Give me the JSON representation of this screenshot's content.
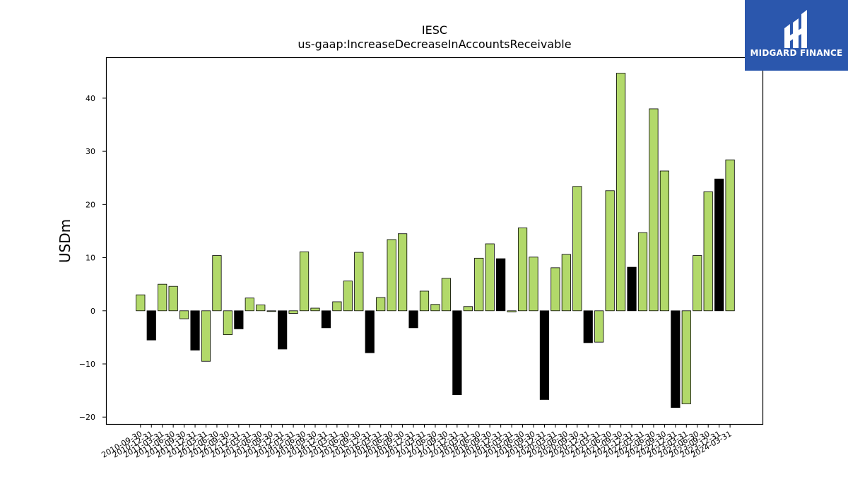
{
  "logo": {
    "text": "MIDGARD FINANCE",
    "icon": "midgard-finance-logo-icon"
  },
  "chart_data": {
    "type": "bar",
    "title": "IESC",
    "subtitle": "us-gaap:IncreaseDecreaseInAccountsReceivable",
    "ylabel": "USDm",
    "xlabel": "",
    "ylim": [
      -21.3,
      47.7
    ],
    "yticks": [
      -20,
      -10,
      0,
      10,
      20,
      30,
      40
    ],
    "ytick_labels": [
      "−20",
      "−10",
      "0",
      "10",
      "20",
      "30",
      "40"
    ],
    "grid": false,
    "legend": "none",
    "colors": {
      "bar_default": "#b2d96a",
      "bar_highlight": "#000000",
      "edge": "#000000"
    },
    "categories": [
      "2010-09-30",
      "2010-12-31",
      "2011-03-31",
      "2011-06-30",
      "2011-09-30",
      "2011-12-31",
      "2012-03-31",
      "2012-06-30",
      "2012-09-30",
      "2012-12-31",
      "2013-03-31",
      "2013-06-30",
      "2013-09-30",
      "2013-12-31",
      "2014-03-31",
      "2014-06-30",
      "2014-09-30",
      "2014-12-31",
      "2015-03-31",
      "2015-06-30",
      "2015-09-30",
      "2015-12-31",
      "2016-03-31",
      "2016-06-30",
      "2016-09-30",
      "2016-12-31",
      "2017-03-31",
      "2017-06-30",
      "2017-09-30",
      "2017-12-31",
      "2018-03-31",
      "2018-06-30",
      "2018-09-30",
      "2018-12-31",
      "2019-03-31",
      "2019-06-30",
      "2019-09-30",
      "2019-12-31",
      "2020-03-31",
      "2020-06-30",
      "2020-09-30",
      "2020-12-31",
      "2021-03-31",
      "2021-06-30",
      "2021-09-30",
      "2021-12-31",
      "2022-03-31",
      "2022-06-30",
      "2022-09-30",
      "2022-12-31",
      "2023-03-31",
      "2023-06-30",
      "2023-09-30",
      "2023-12-31",
      "2024-03-31"
    ],
    "x_tick_labels": [
      "2010-09-30",
      "2010-12-31",
      "2011-03-31",
      "2011-06-30",
      "2011-09-30",
      "2011-12-31",
      "2012-03-31",
      "2012-06-30",
      "2012-09-30",
      "2012-12-31",
      "2013-03-31",
      "2013-06-30",
      "2013-09-30",
      "2013-12-31",
      "2014-03-31",
      "2014-06-30",
      "2014-09-30",
      "2014-12-31",
      "2015-03-31",
      "2015-06-30",
      "2015-09-30",
      "2015-12-31",
      "2016-03-31",
      "2016-06-30",
      "2016-09-30",
      "2016-12-31",
      "2017-03-31",
      "2017-06-30",
      "2017-09-30",
      "2017-12-31",
      "2018-03-31",
      "2018-06-30",
      "2018-09-30",
      "2018-12-31",
      "2019-03-31",
      "2019-06-30",
      "2019-09-30",
      "2019-12-31",
      "2020-03-31",
      "2020-06-30",
      "2020-09-30",
      "2020-12-31",
      "2021-03-31",
      "2021-06-30",
      "2021-09-30",
      "2021-12-31",
      "2022-03-31",
      "2022-06-30",
      "2022-09-30",
      "2022-12-31",
      "2023-03-31",
      "2023-06-30",
      "2023-09-30",
      "2023-12-31",
      "2024-03-31"
    ],
    "values": [
      3.0,
      -5.5,
      5.0,
      4.6,
      -1.5,
      -7.4,
      -9.5,
      10.4,
      -4.5,
      -3.4,
      2.4,
      1.1,
      -0.1,
      -7.2,
      -0.5,
      11.1,
      0.5,
      -3.2,
      1.7,
      5.6,
      11.0,
      -7.9,
      2.5,
      13.4,
      14.5,
      -3.2,
      3.7,
      1.2,
      6.1,
      -15.8,
      0.8,
      9.9,
      12.6,
      9.8,
      -0.2,
      15.6,
      10.1,
      -16.7,
      8.1,
      10.6,
      23.4,
      -6.0,
      -5.9,
      22.6,
      44.7,
      8.2,
      14.7,
      38.0,
      26.3,
      -18.2,
      -17.5,
      10.4,
      22.4,
      24.8,
      28.4
    ],
    "highlighted": [
      false,
      true,
      false,
      false,
      false,
      true,
      false,
      false,
      false,
      true,
      false,
      false,
      false,
      true,
      false,
      false,
      false,
      true,
      false,
      false,
      false,
      true,
      false,
      false,
      false,
      true,
      false,
      false,
      false,
      true,
      false,
      false,
      false,
      true,
      false,
      false,
      false,
      true,
      false,
      false,
      false,
      true,
      false,
      false,
      false,
      true,
      false,
      false,
      false,
      true,
      false,
      false,
      false,
      true,
      false
    ]
  }
}
